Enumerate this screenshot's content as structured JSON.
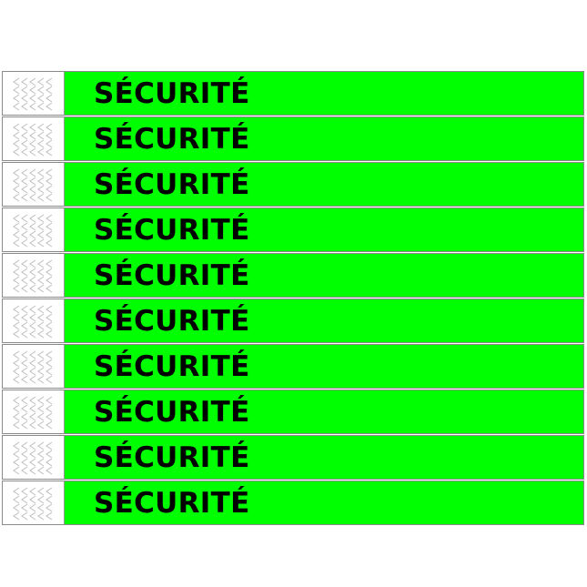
{
  "colors": {
    "band": "#00ff00",
    "tab": "#ffffff",
    "text": "#000000"
  },
  "bands": [
    {
      "label": "SÉCURITÉ"
    },
    {
      "label": "SÉCURITÉ"
    },
    {
      "label": "SÉCURITÉ"
    },
    {
      "label": "SÉCURITÉ"
    },
    {
      "label": "SÉCURITÉ"
    },
    {
      "label": "SÉCURITÉ"
    },
    {
      "label": "SÉCURITÉ"
    },
    {
      "label": "SÉCURITÉ"
    },
    {
      "label": "SÉCURITÉ"
    },
    {
      "label": "SÉCURITÉ"
    }
  ]
}
